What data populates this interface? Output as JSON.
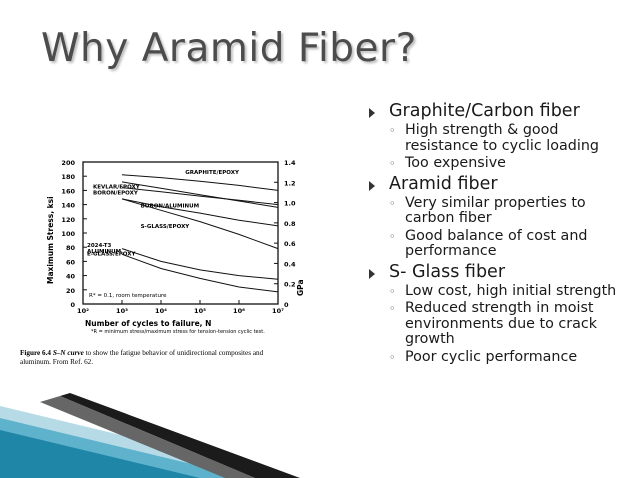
{
  "slide": {
    "title": "Why Aramid Fiber?",
    "colors": {
      "title": "#4c4c4c",
      "accent": "#2a8fb0",
      "text": "#1a1a1a"
    }
  },
  "bullets": [
    {
      "label": "Graphite/Carbon fiber",
      "subs": [
        "High strength & good resistance to cyclic loading",
        "Too expensive"
      ]
    },
    {
      "label": "Aramid fiber",
      "subs": [
        "Very similar properties to carbon fiber",
        "Good balance of cost and performance"
      ]
    },
    {
      "label": "S- Glass fiber",
      "subs": [
        "Low cost, high initial strength",
        "Reduced strength in moist environments due to crack growth",
        "Poor cyclic performance"
      ]
    }
  ],
  "figure": {
    "caption_label": "Figure 6.4",
    "caption_em": "S–N curve",
    "caption_text": " to show the fatigue behavior of unidirectional composites and aluminum. From Ref. 62.",
    "footnote": "*R = minimum stress/maximum stress for tension-tension cyclic test.",
    "r_note": "R* = 0.1, room temperature"
  },
  "chart_data": {
    "type": "line",
    "xlabel": "Number of cycles to failure, N",
    "ylabel": "Maximum Stress, ksi",
    "y2label": "GPa",
    "x_log": true,
    "xlim": [
      100,
      10000000
    ],
    "ylim": [
      0,
      200
    ],
    "y2lim": [
      0,
      1.4
    ],
    "x_tick_labels": [
      "10²",
      "10³",
      "10⁴",
      "10⁵",
      "10⁶",
      "10⁷"
    ],
    "y_ticks": [
      0,
      20,
      40,
      60,
      80,
      100,
      120,
      140,
      160,
      180,
      200
    ],
    "y2_ticks": [
      "0",
      "0.2",
      "0.4",
      "0.6",
      "0.8",
      "1.0",
      "1.2",
      "1.4"
    ],
    "series": [
      {
        "name": "GRAPHITE/EPOXY",
        "points": [
          [
            1000,
            182
          ],
          [
            10000,
            178
          ],
          [
            100000,
            173
          ],
          [
            1000000,
            167
          ],
          [
            10000000,
            160
          ]
        ]
      },
      {
        "name": "KEVLAR/EPOXY",
        "points": [
          [
            1000,
            172
          ],
          [
            10000,
            163
          ],
          [
            100000,
            154
          ],
          [
            1000000,
            145
          ],
          [
            10000000,
            136
          ]
        ]
      },
      {
        "name": "BORON/EPOXY",
        "points": [
          [
            1000,
            164
          ],
          [
            10000,
            158
          ],
          [
            100000,
            152
          ],
          [
            1000000,
            146
          ],
          [
            10000000,
            140
          ]
        ]
      },
      {
        "name": "BORON/ALUMINUM",
        "points": [
          [
            1000,
            148
          ],
          [
            10000,
            137
          ],
          [
            100000,
            128
          ],
          [
            1000000,
            118
          ],
          [
            10000000,
            110
          ]
        ]
      },
      {
        "name": "S-GLASS/EPOXY",
        "points": [
          [
            1000,
            148
          ],
          [
            10000,
            132
          ],
          [
            100000,
            116
          ],
          [
            1000000,
            98
          ],
          [
            10000000,
            78
          ]
        ]
      },
      {
        "name": "2024-T3 ALUMINUM",
        "points": [
          [
            1000,
            78
          ],
          [
            10000,
            60
          ],
          [
            100000,
            48
          ],
          [
            1000000,
            40
          ],
          [
            10000000,
            35
          ]
        ]
      },
      {
        "name": "E-GLASS/EPOXY",
        "points": [
          [
            1000,
            70
          ],
          [
            10000,
            50
          ],
          [
            100000,
            36
          ],
          [
            1000000,
            24
          ],
          [
            10000000,
            17
          ]
        ]
      }
    ]
  }
}
